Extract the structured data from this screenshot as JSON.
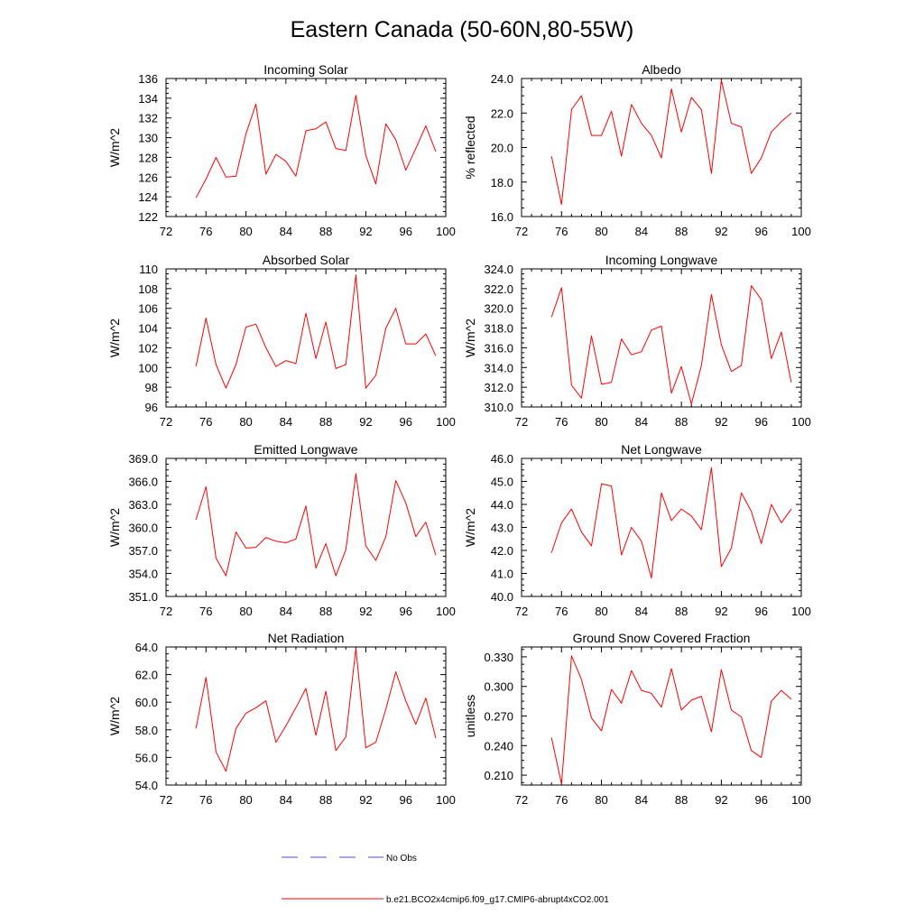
{
  "title": "Eastern Canada (50-60N,80-55W)",
  "colors": {
    "model": "#ff0000",
    "obs": "#4a4aff",
    "axis": "#000000"
  },
  "legend": [
    {
      "label": "No Obs",
      "style": "dashed",
      "color": "#4a4aff"
    },
    {
      "label": "b.e21.BCO2x4cmip6.f09_g17.CMIP6-abrupt4xCO2.001",
      "style": "solid",
      "color": "#ff0000"
    }
  ],
  "chart_data": [
    {
      "type": "line",
      "title": "Incoming Solar",
      "ylabel": "W/m^2",
      "xlim": [
        72,
        100
      ],
      "xticks": [
        72,
        76,
        80,
        84,
        88,
        92,
        96,
        100
      ],
      "ylim": [
        122,
        136
      ],
      "yticks": [
        122,
        124,
        126,
        128,
        130,
        132,
        134,
        136
      ],
      "ytick_decimals": 0,
      "x": [
        75,
        76,
        77,
        78,
        79,
        80,
        81,
        82,
        83,
        84,
        85,
        86,
        87,
        88,
        89,
        90,
        91,
        92,
        93,
        94,
        95,
        96,
        97,
        98,
        99
      ],
      "series": [
        {
          "name": "b.e21.BCO2x4cmip6.f09_g17.CMIP6-abrupt4xCO2.001",
          "values": [
            123.9,
            125.8,
            128.0,
            126.0,
            126.1,
            130.4,
            133.4,
            126.3,
            128.3,
            127.6,
            126.1,
            130.7,
            130.9,
            131.6,
            128.9,
            128.7,
            134.3,
            128.2,
            125.3,
            131.4,
            129.8,
            126.7,
            128.9,
            131.2,
            128.6
          ]
        }
      ]
    },
    {
      "type": "line",
      "title": "Albedo",
      "ylabel": "% reflected",
      "xlim": [
        72,
        100
      ],
      "xticks": [
        72,
        76,
        80,
        84,
        88,
        92,
        96,
        100
      ],
      "ylim": [
        16,
        24
      ],
      "yticks": [
        16,
        18,
        20,
        22,
        24
      ],
      "ytick_decimals": 1,
      "x": [
        75,
        76,
        77,
        78,
        79,
        80,
        81,
        82,
        83,
        84,
        85,
        86,
        87,
        88,
        89,
        90,
        91,
        92,
        93,
        94,
        95,
        96,
        97,
        98,
        99
      ],
      "series": [
        {
          "name": "b.e21.BCO2x4cmip6.f09_g17.CMIP6-abrupt4xCO2.001",
          "values": [
            19.5,
            16.7,
            22.2,
            23.0,
            20.7,
            20.7,
            22.1,
            19.5,
            22.5,
            21.4,
            20.7,
            19.4,
            23.4,
            20.9,
            22.9,
            22.2,
            18.5,
            23.9,
            21.4,
            21.2,
            18.5,
            19.4,
            20.9,
            21.5,
            22.0
          ]
        }
      ]
    },
    {
      "type": "line",
      "title": "Absorbed Solar",
      "ylabel": "W/m^2",
      "xlim": [
        72,
        100
      ],
      "xticks": [
        72,
        76,
        80,
        84,
        88,
        92,
        96,
        100
      ],
      "ylim": [
        96,
        110
      ],
      "yticks": [
        96,
        98,
        100,
        102,
        104,
        106,
        108,
        110
      ],
      "ytick_decimals": 0,
      "x": [
        75,
        76,
        77,
        78,
        79,
        80,
        81,
        82,
        83,
        84,
        85,
        86,
        87,
        88,
        89,
        90,
        91,
        92,
        93,
        94,
        95,
        96,
        97,
        98,
        99
      ],
      "series": [
        {
          "name": "b.e21.BCO2x4cmip6.f09_g17.CMIP6-abrupt4xCO2.001",
          "values": [
            100.1,
            105.0,
            100.3,
            97.9,
            100.3,
            104.1,
            104.4,
            102.0,
            100.1,
            100.7,
            100.4,
            105.5,
            100.9,
            104.6,
            99.9,
            100.3,
            109.4,
            97.9,
            99.2,
            104.0,
            106.0,
            102.4,
            102.4,
            103.4,
            101.2
          ]
        }
      ]
    },
    {
      "type": "line",
      "title": "Incoming Longwave",
      "ylabel": "W/m^2",
      "xlim": [
        72,
        100
      ],
      "xticks": [
        72,
        76,
        80,
        84,
        88,
        92,
        96,
        100
      ],
      "ylim": [
        310,
        324
      ],
      "yticks": [
        310,
        312,
        314,
        316,
        318,
        320,
        322,
        324
      ],
      "ytick_decimals": 1,
      "x": [
        75,
        76,
        77,
        78,
        79,
        80,
        81,
        82,
        83,
        84,
        85,
        86,
        87,
        88,
        89,
        90,
        91,
        92,
        93,
        94,
        95,
        96,
        97,
        98,
        99
      ],
      "series": [
        {
          "name": "b.e21.BCO2x4cmip6.f09_g17.CMIP6-abrupt4xCO2.001",
          "values": [
            319.1,
            322.1,
            312.2,
            310.9,
            317.2,
            312.3,
            312.5,
            316.9,
            315.3,
            315.6,
            317.8,
            318.2,
            311.4,
            314.1,
            310.3,
            314.2,
            321.4,
            316.3,
            313.6,
            314.2,
            322.3,
            320.9,
            314.9,
            317.6,
            312.5
          ]
        }
      ]
    },
    {
      "type": "line",
      "title": "Emitted Longwave",
      "ylabel": "W/m^2",
      "xlim": [
        72,
        100
      ],
      "xticks": [
        72,
        76,
        80,
        84,
        88,
        92,
        96,
        100
      ],
      "ylim": [
        351,
        369
      ],
      "yticks": [
        351,
        354,
        357,
        360,
        363,
        366,
        369
      ],
      "ytick_decimals": 1,
      "x": [
        75,
        76,
        77,
        78,
        79,
        80,
        81,
        82,
        83,
        84,
        85,
        86,
        87,
        88,
        89,
        90,
        91,
        92,
        93,
        94,
        95,
        96,
        97,
        98,
        99
      ],
      "series": [
        {
          "name": "b.e21.BCO2x4cmip6.f09_g17.CMIP6-abrupt4xCO2.001",
          "values": [
            361.0,
            365.3,
            356.0,
            353.7,
            359.4,
            357.3,
            357.4,
            358.7,
            358.2,
            358.0,
            358.5,
            362.8,
            354.7,
            357.9,
            353.7,
            357.1,
            367.0,
            357.6,
            355.7,
            358.8,
            366.1,
            363.2,
            358.8,
            360.7,
            356.4
          ]
        }
      ]
    },
    {
      "type": "line",
      "title": "Net Longwave",
      "ylabel": "W/m^2",
      "xlim": [
        72,
        100
      ],
      "xticks": [
        72,
        76,
        80,
        84,
        88,
        92,
        96,
        100
      ],
      "ylim": [
        40,
        46
      ],
      "yticks": [
        40,
        41,
        42,
        43,
        44,
        45,
        46
      ],
      "ytick_decimals": 1,
      "x": [
        75,
        76,
        77,
        78,
        79,
        80,
        81,
        82,
        83,
        84,
        85,
        86,
        87,
        88,
        89,
        90,
        91,
        92,
        93,
        94,
        95,
        96,
        97,
        98,
        99
      ],
      "series": [
        {
          "name": "b.e21.BCO2x4cmip6.f09_g17.CMIP6-abrupt4xCO2.001",
          "values": [
            41.9,
            43.2,
            43.8,
            42.8,
            42.2,
            44.9,
            44.8,
            41.8,
            43.0,
            42.4,
            40.8,
            44.5,
            43.3,
            43.8,
            43.5,
            42.9,
            45.6,
            41.3,
            42.1,
            44.5,
            43.7,
            42.3,
            44.0,
            43.2,
            43.8
          ]
        }
      ]
    },
    {
      "type": "line",
      "title": "Net Radiation",
      "ylabel": "W/m^2",
      "xlim": [
        72,
        100
      ],
      "xticks": [
        72,
        76,
        80,
        84,
        88,
        92,
        96,
        100
      ],
      "ylim": [
        54,
        64
      ],
      "yticks": [
        54,
        56,
        58,
        60,
        62,
        64
      ],
      "ytick_decimals": 1,
      "x": [
        75,
        76,
        77,
        78,
        79,
        80,
        81,
        82,
        83,
        84,
        85,
        86,
        87,
        88,
        89,
        90,
        91,
        92,
        93,
        94,
        95,
        96,
        97,
        98,
        99
      ],
      "series": [
        {
          "name": "b.e21.BCO2x4cmip6.f09_g17.CMIP6-abrupt4xCO2.001",
          "values": [
            58.1,
            61.8,
            56.4,
            55.0,
            58.1,
            59.2,
            59.6,
            60.1,
            57.1,
            58.3,
            59.6,
            61.0,
            57.6,
            60.8,
            56.5,
            57.5,
            63.9,
            56.7,
            57.1,
            59.5,
            62.2,
            60.1,
            58.4,
            60.3,
            57.4
          ]
        }
      ]
    },
    {
      "type": "line",
      "title": "Ground Snow Covered Fraction",
      "ylabel": "unitless",
      "xlim": [
        72,
        100
      ],
      "xticks": [
        72,
        76,
        80,
        84,
        88,
        92,
        96,
        100
      ],
      "ylim": [
        0.2,
        0.34
      ],
      "yticks": [
        0.21,
        0.24,
        0.27,
        0.3,
        0.33
      ],
      "ytick_decimals": 3,
      "x": [
        75,
        76,
        77,
        78,
        79,
        80,
        81,
        82,
        83,
        84,
        85,
        86,
        87,
        88,
        89,
        90,
        91,
        92,
        93,
        94,
        95,
        96,
        97,
        98,
        99
      ],
      "series": [
        {
          "name": "b.e21.BCO2x4cmip6.f09_g17.CMIP6-abrupt4xCO2.001",
          "values": [
            0.248,
            0.201,
            0.331,
            0.307,
            0.268,
            0.255,
            0.297,
            0.283,
            0.316,
            0.296,
            0.293,
            0.279,
            0.318,
            0.276,
            0.286,
            0.29,
            0.254,
            0.317,
            0.276,
            0.269,
            0.235,
            0.228,
            0.285,
            0.296,
            0.287
          ]
        }
      ]
    }
  ]
}
